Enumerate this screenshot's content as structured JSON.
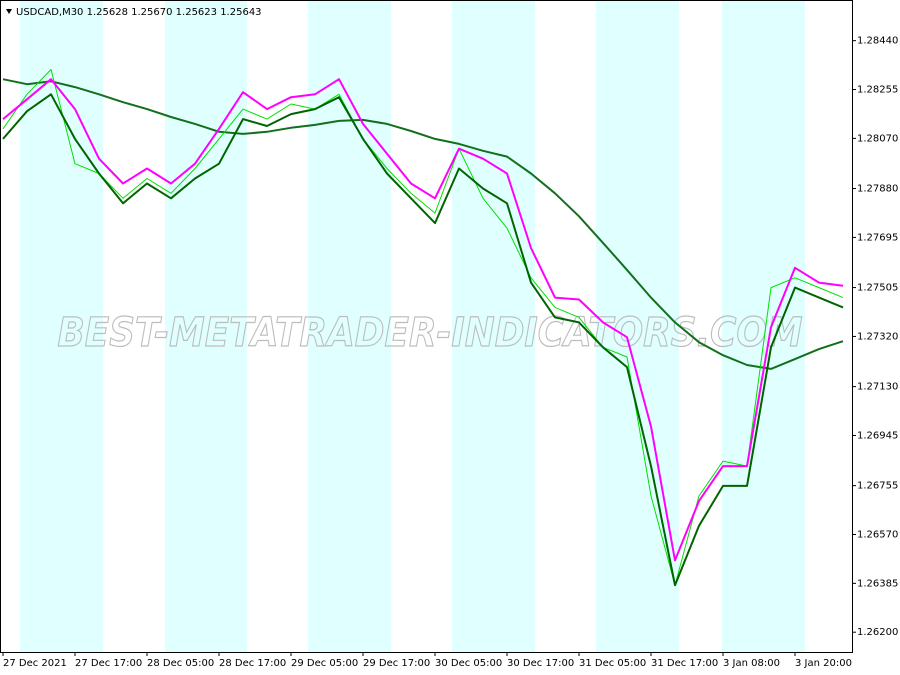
{
  "chart_data": {
    "type": "line",
    "title": "USDCAD,M30  1.25628 1.25670 1.25623 1.25643",
    "watermark": "BEST-METATRADER-INDICATORS.COM",
    "x": [
      0,
      8,
      16,
      24,
      32,
      40,
      48,
      56,
      64,
      72,
      80,
      88,
      96,
      104,
      112,
      120,
      128,
      136,
      144,
      152,
      160,
      168,
      176,
      184,
      192,
      200,
      208,
      216,
      224,
      232,
      240,
      248,
      256,
      264,
      272,
      280
    ],
    "xlim": [
      -1,
      283
    ],
    "xticks": [
      {
        "value": 0,
        "label": "27 Dec 2021"
      },
      {
        "value": 24,
        "label": "27 Dec 17:00"
      },
      {
        "value": 48,
        "label": "28 Dec 05:00"
      },
      {
        "value": 72,
        "label": "28 Dec 17:00"
      },
      {
        "value": 96,
        "label": "29 Dec 05:00"
      },
      {
        "value": 120,
        "label": "29 Dec 17:00"
      },
      {
        "value": 144,
        "label": "30 Dec 05:00"
      },
      {
        "value": 168,
        "label": "30 Dec 17:00"
      },
      {
        "value": 192,
        "label": "31 Dec 05:00"
      },
      {
        "value": 216,
        "label": "31 Dec 17:00"
      },
      {
        "value": 240,
        "label": "3 Jan 08:00"
      },
      {
        "value": 264,
        "label": "3 Jan 20:00"
      }
    ],
    "ylim": [
      1.26125,
      1.28594
    ],
    "yticks": [
      {
        "value": 1.2844,
        "label": "1.28440"
      },
      1.28255,
      {
        "value": 1.2807,
        "label": "1.28070"
      },
      {
        "value": 1.2788,
        "label": "1.27880"
      },
      1.27695,
      1.27505,
      {
        "value": 1.2732,
        "label": "1.27320"
      },
      {
        "value": 1.2713,
        "label": "1.27130"
      },
      1.26945,
      1.26755,
      {
        "value": 1.2657,
        "label": "1.26570"
      },
      1.26385,
      {
        "value": 1.262,
        "label": "1.26200"
      }
    ],
    "series": [
      {
        "color": "#00e000",
        "values": [
          1.28106,
          1.28237,
          1.28331,
          1.27974,
          1.27937,
          1.27843,
          1.27918,
          1.27862,
          1.27956,
          1.28068,
          1.28181,
          1.28143,
          1.282,
          1.28181,
          1.28237,
          1.28068,
          1.27956,
          1.27862,
          1.27787,
          1.28031,
          1.27843,
          1.2773,
          1.27542,
          1.2743,
          1.27392,
          1.27279,
          1.27242,
          1.26716,
          1.26378,
          1.26716,
          1.26848,
          1.26829,
          1.27505,
          1.27542,
          1.27505,
          1.27467
        ]
      },
      {
        "color": "#ff00ff",
        "values": [
          1.28143,
          1.28218,
          1.28294,
          1.28181,
          1.27993,
          1.27899,
          1.27956,
          1.27899,
          1.27974,
          1.28106,
          1.28245,
          1.28181,
          1.28226,
          1.28237,
          1.28294,
          1.28125,
          1.28012,
          1.27899,
          1.27843,
          1.28031,
          1.27993,
          1.27937,
          1.27655,
          1.27467,
          1.2746,
          1.27373,
          1.27317,
          1.26979,
          1.26472,
          1.26697,
          1.26829,
          1.26829,
          1.27355,
          1.2758,
          1.27524,
          1.27512
        ]
      },
      {
        "color": "#006400",
        "values": [
          1.28068,
          1.28173,
          1.28237,
          1.28068,
          1.27937,
          1.27824,
          1.27899,
          1.27843,
          1.27918,
          1.27974,
          1.28143,
          1.28117,
          1.28162,
          1.28181,
          1.28226,
          1.28068,
          1.27937,
          1.27843,
          1.27749,
          1.27956,
          1.2788,
          1.27824,
          1.27524,
          1.27392,
          1.27373,
          1.27279,
          1.27204,
          1.26829,
          1.26378,
          1.26603,
          1.26754,
          1.26754,
          1.27279,
          1.27505,
          1.27467,
          1.2743
        ]
      },
      {
        "color": "#11701c",
        "values": [
          1.28294,
          1.28275,
          1.28286,
          1.28264,
          1.28237,
          1.28207,
          1.28181,
          1.28151,
          1.28125,
          1.28095,
          1.28087,
          1.28095,
          1.2811,
          1.28121,
          1.28136,
          1.2814,
          1.28125,
          1.28098,
          1.28068,
          1.28049,
          1.28023,
          1.28001,
          1.27937,
          1.27862,
          1.27775,
          1.27674,
          1.27572,
          1.27467,
          1.27373,
          1.27298,
          1.27249,
          1.27212,
          1.27197,
          1.27234,
          1.27272,
          1.27302
        ]
      }
    ]
  }
}
